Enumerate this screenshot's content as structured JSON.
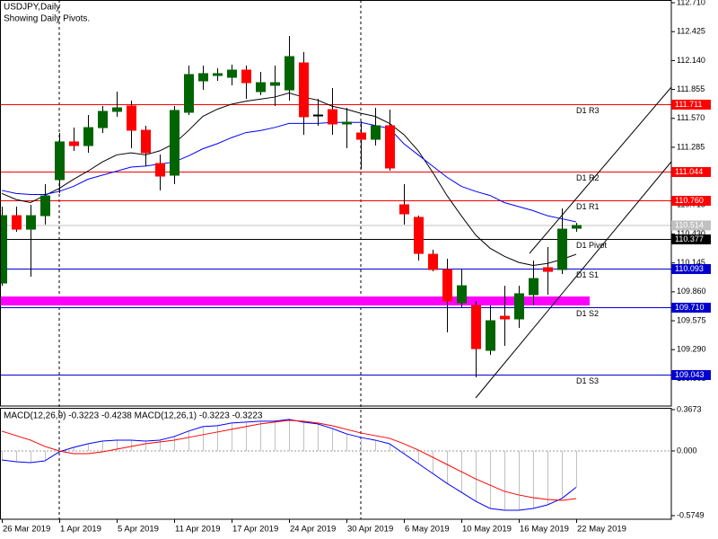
{
  "chart_data": [
    {
      "type": "candlestick",
      "title": "USDJPY,Daily",
      "subtitle": "Showing Daily Pivots.",
      "categories": [
        "26 Mar 2019",
        null,
        null,
        null,
        "1 Apr 2019",
        null,
        null,
        null,
        "5 Apr 2019",
        null,
        null,
        null,
        "11 Apr 2019",
        null,
        null,
        null,
        "17 Apr 2019",
        null,
        null,
        null,
        "24 Apr 2019",
        null,
        null,
        null,
        "30 Apr 2019",
        null,
        null,
        null,
        "6 May 2019",
        null,
        null,
        null,
        "10 May 2019",
        null,
        null,
        null,
        "16 May 2019",
        null,
        null,
        null,
        "22 May 2019"
      ],
      "open": [
        109.947,
        110.611,
        110.478,
        110.611,
        110.966,
        111.338,
        111.302,
        111.479,
        111.639,
        111.692,
        111.453,
        111.125,
        111.01,
        111.63,
        111.94,
        111.993,
        111.975,
        112.046,
        111.834,
        111.896,
        111.851,
        112.117,
        111.603,
        111.656,
        111.515,
        111.426,
        111.364,
        111.497,
        110.718,
        110.594,
        110.23,
        110.08,
        109.752,
        109.726,
        109.283,
        109.619,
        109.593,
        109.832,
        110.098,
        110.08,
        110.487
      ],
      "high": [
        110.7,
        110.7,
        110.718,
        110.921,
        111.426,
        111.479,
        111.603,
        111.692,
        111.834,
        111.745,
        111.497,
        111.214,
        111.692,
        112.09,
        112.09,
        112.064,
        112.099,
        112.09,
        112.028,
        112.09,
        112.383,
        112.223,
        111.763,
        111.869,
        111.674,
        111.541,
        111.674,
        111.656,
        110.921,
        110.611,
        110.275,
        110.186,
        110.08,
        109.77,
        109.726,
        109.92,
        109.92,
        110.168,
        110.301,
        110.682,
        110.54
      ],
      "low": [
        109.92,
        110.452,
        110.009,
        110.523,
        110.833,
        111.249,
        111.231,
        111.426,
        111.586,
        111.276,
        111.098,
        110.859,
        110.921,
        111.603,
        111.851,
        111.94,
        111.896,
        111.763,
        111.798,
        111.692,
        111.745,
        111.408,
        111.497,
        111.408,
        111.276,
        111.072,
        111.302,
        111.054,
        110.523,
        110.168,
        110.062,
        109.46,
        109.708,
        109.017,
        109.238,
        109.327,
        109.504,
        109.726,
        109.832,
        110.036,
        110.452
      ],
      "close": [
        110.611,
        110.478,
        110.611,
        110.806,
        111.338,
        111.302,
        111.479,
        111.639,
        111.674,
        111.453,
        111.231,
        111.001,
        111.648,
        112.002,
        112.011,
        112.011,
        112.046,
        111.922,
        111.922,
        111.922,
        112.179,
        111.586,
        111.603,
        111.515,
        111.532,
        111.364,
        111.497,
        111.081,
        110.629,
        110.239,
        110.08,
        109.77,
        109.92,
        109.3,
        109.575,
        109.593,
        109.841,
        109.991,
        110.062,
        110.478,
        110.514
      ],
      "up_color": "#006400",
      "down_color": "#ff0000",
      "last_price_color": "#c0c0c0",
      "ylim": [
        108.734,
        112.737
      ],
      "yticks": [
        {
          "value": 112.71,
          "label": "112.710"
        },
        112.425,
        {
          "value": 112.14,
          "label": "112.140"
        },
        111.855,
        {
          "value": 111.57,
          "label": "111.570"
        },
        111.285,
        110.715,
        {
          "value": 110.43,
          "label": "110.430"
        },
        110.145,
        {
          "value": 109.86,
          "label": "109.860"
        },
        109.575,
        {
          "value": 109.29,
          "label": "109.290"
        },
        109.005
      ],
      "lines": [
        {
          "color": "#000000",
          "values": [
            110.83,
            110.77,
            110.74,
            110.81,
            110.88,
            110.97,
            111.05,
            111.14,
            111.21,
            111.23,
            111.21,
            111.25,
            111.32,
            111.45,
            111.59,
            111.66,
            111.71,
            111.74,
            111.76,
            111.78,
            111.82,
            111.78,
            111.75,
            111.69,
            111.66,
            111.62,
            111.59,
            111.52,
            111.41,
            111.25,
            111.04,
            110.81,
            110.61,
            110.42,
            110.29,
            110.21,
            110.15,
            110.12,
            110.14,
            110.18,
            110.23
          ]
        },
        {
          "color": "#0000ff",
          "values": [
            110.86,
            110.83,
            110.82,
            110.82,
            110.85,
            110.9,
            110.97,
            111.01,
            111.05,
            111.09,
            111.1,
            111.12,
            111.14,
            111.2,
            111.27,
            111.32,
            111.38,
            111.43,
            111.45,
            111.48,
            111.52,
            111.52,
            111.52,
            111.53,
            111.53,
            111.53,
            111.5,
            111.47,
            111.32,
            111.21,
            111.1,
            110.99,
            110.9,
            110.85,
            110.81,
            110.74,
            110.7,
            110.66,
            110.61,
            110.58,
            110.55
          ]
        }
      ],
      "pivots": [
        {
          "name": "D1 R3",
          "value": 111.711,
          "color": "#ff0000"
        },
        {
          "name": "D1 R2",
          "value": 111.044,
          "color": "#ff0000"
        },
        {
          "name": "D1 R1",
          "value": 110.76,
          "label": "110.760",
          "color": "#ff0000"
        },
        {
          "name": "D1 Pivot",
          "value": 110.377,
          "color": "#000000"
        },
        {
          "name": "D1 S1",
          "value": 110.093,
          "color": "#0000cd"
        },
        {
          "name": "D1 S2",
          "value": 109.71,
          "label": "109.710",
          "color": "#0000cd"
        },
        {
          "name": "D1 S3",
          "value": 109.043,
          "color": "#0000cd"
        }
      ],
      "zone": {
        "from": 109.726,
        "to": 109.814,
        "color": "#ff00ff"
      }
    },
    {
      "type": "macd",
      "title": "MACD(12,26,9) -0.3223 -0.4238 MACD(12,26,1) -0.3223 -0.3223",
      "ylim": [
        -0.607,
        0.383
      ],
      "yticks": [
        0.3673,
        {
          "value": 0,
          "label": "0.000"
        },
        -0.5749
      ],
      "series": [
        {
          "color": "#0000ff",
          "histogram_color": "#c0c0c0",
          "values": [
            -0.08,
            -0.096,
            -0.104,
            -0.088,
            -0.008,
            0.032,
            0.064,
            0.088,
            0.096,
            0.096,
            0.088,
            0.096,
            0.128,
            0.176,
            0.216,
            0.224,
            0.248,
            0.256,
            0.264,
            0.264,
            0.28,
            0.256,
            0.24,
            0.2,
            0.152,
            0.12,
            0.096,
            0.064,
            -0.024,
            -0.112,
            -0.2,
            -0.288,
            -0.367,
            -0.447,
            -0.511,
            -0.527,
            -0.527,
            -0.511,
            -0.479,
            -0.423,
            -0.3223
          ]
        },
        {
          "color": "#ff0000",
          "values": [
            0.176,
            0.136,
            0.096,
            0.04,
            0.0,
            -0.024,
            -0.024,
            -0.008,
            0.016,
            0.04,
            0.064,
            0.08,
            0.096,
            0.12,
            0.144,
            0.168,
            0.192,
            0.216,
            0.24,
            0.256,
            0.272,
            0.264,
            0.248,
            0.224,
            0.192,
            0.16,
            0.136,
            0.112,
            0.064,
            0.008,
            -0.056,
            -0.12,
            -0.184,
            -0.248,
            -0.304,
            -0.359,
            -0.391,
            -0.415,
            -0.431,
            -0.439,
            -0.4238
          ]
        }
      ]
    }
  ]
}
